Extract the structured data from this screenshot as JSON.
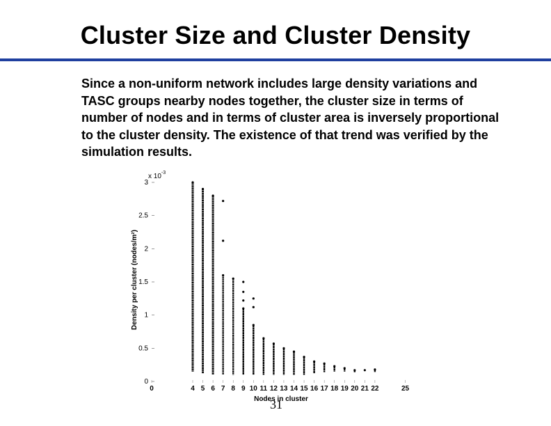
{
  "slide": {
    "title": "Cluster Size and Cluster Density",
    "body": "Since a non-uniform network includes large density variations and TASC groups nearby nodes together, the cluster size in terms of number of nodes and in terms of cluster area is inversely proportional to the cluster density. The existence of that trend was verified by the simulation results.",
    "page_number": "31",
    "accent_color": "#1f3f9f"
  },
  "chart_data": {
    "type": "scatter",
    "xlabel": "Nodes in cluster",
    "ylabel": "Density per cluster (nodes/m²)",
    "y_scale_note": "x 10-3",
    "x_ticks": [
      "0",
      "4",
      "5",
      "6",
      "7",
      "8",
      "9",
      "10",
      "11",
      "12",
      "13",
      "14",
      "15",
      "16",
      "17",
      "18",
      "19",
      "20",
      "21",
      "22",
      "25"
    ],
    "y_ticks": [
      "0",
      "0.5",
      "1",
      "1.5",
      "2",
      "2.5",
      "3"
    ],
    "ylim": [
      0,
      3
    ],
    "grid": false,
    "series": [
      {
        "columns": [
          {
            "x": 4,
            "min": 0.15,
            "max": 3.0
          },
          {
            "x": 5,
            "min": 0.12,
            "max": 2.9
          },
          {
            "x": 6,
            "min": 0.1,
            "max": 2.8
          },
          {
            "x": 7,
            "min": 0.1,
            "max": 1.6,
            "outliers": [
              2.72,
              2.12
            ]
          },
          {
            "x": 8,
            "min": 0.1,
            "max": 1.55
          },
          {
            "x": 9,
            "min": 0.1,
            "max": 1.1,
            "outliers": [
              1.5,
              1.35,
              1.22
            ]
          },
          {
            "x": 10,
            "min": 0.1,
            "max": 0.85,
            "outliers": [
              1.25,
              1.12
            ]
          },
          {
            "x": 11,
            "min": 0.1,
            "max": 0.65
          },
          {
            "x": 12,
            "min": 0.1,
            "max": 0.57
          },
          {
            "x": 13,
            "min": 0.1,
            "max": 0.5
          },
          {
            "x": 14,
            "min": 0.1,
            "max": 0.45
          },
          {
            "x": 15,
            "min": 0.1,
            "max": 0.37
          },
          {
            "x": 16,
            "min": 0.12,
            "max": 0.3
          },
          {
            "x": 17,
            "min": 0.14,
            "max": 0.27
          },
          {
            "x": 18,
            "min": 0.15,
            "max": 0.23
          },
          {
            "x": 19,
            "min": 0.15,
            "max": 0.2
          },
          {
            "x": 20,
            "min": 0.14,
            "max": 0.17
          },
          {
            "x": 21,
            "min": 0.17,
            "max": 0.17
          },
          {
            "x": 22,
            "min": 0.14,
            "max": 0.18
          }
        ]
      }
    ]
  }
}
